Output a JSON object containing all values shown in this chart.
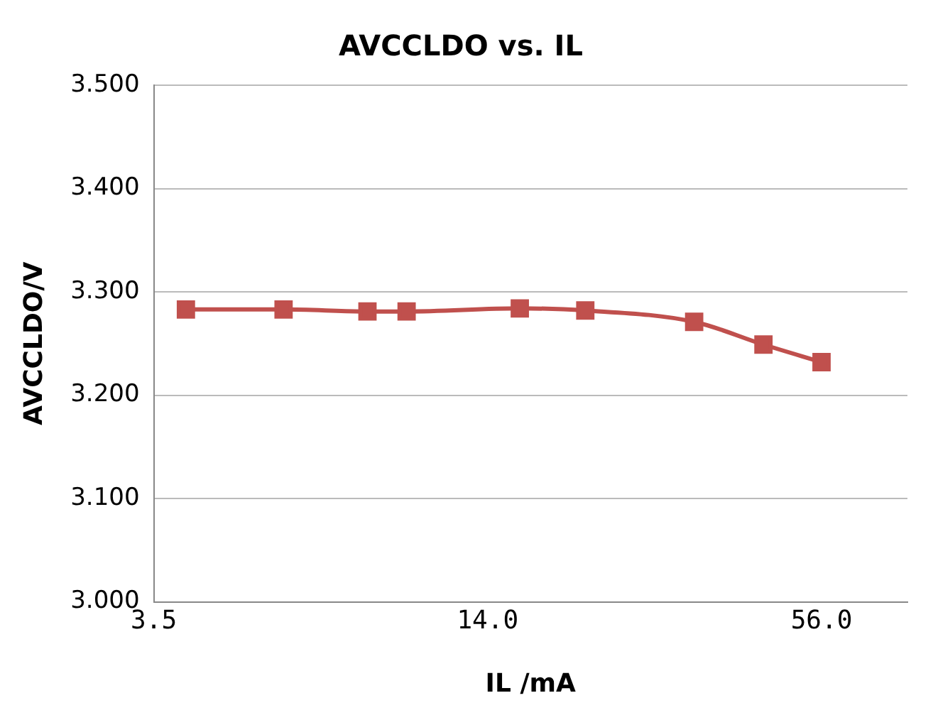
{
  "chart_data": {
    "type": "line",
    "title": "AVCCLDO vs. IL",
    "xlabel": "IL /mA",
    "ylabel": "AVCCLDO/V",
    "x": [
      4,
      6,
      8.5,
      10,
      16,
      21,
      33,
      44,
      56
    ],
    "series": [
      {
        "color": "#c0504d",
        "values": [
          3.283,
          3.283,
          3.281,
          3.281,
          3.284,
          3.282,
          3.271,
          3.249,
          3.232
        ]
      }
    ],
    "log": "x",
    "xlim": [
      3.5,
      80
    ],
    "xticks": [
      3.5,
      {
        "value": 14,
        "label": "14.0"
      },
      {
        "value": 56,
        "label": "56.0"
      }
    ],
    "ylim": [
      3,
      3.5
    ],
    "yticks": [
      {
        "value": 3,
        "label": "3.000"
      },
      {
        "value": 3.1,
        "label": "3.100"
      },
      {
        "value": 3.2,
        "label": "3.200"
      },
      {
        "value": 3.3,
        "label": "3.300"
      },
      {
        "value": 3.4,
        "label": "3.400"
      },
      {
        "value": 3.5,
        "label": "3.500"
      }
    ],
    "grid": "y",
    "legend": false,
    "marker": "square",
    "line_style": "solid"
  }
}
